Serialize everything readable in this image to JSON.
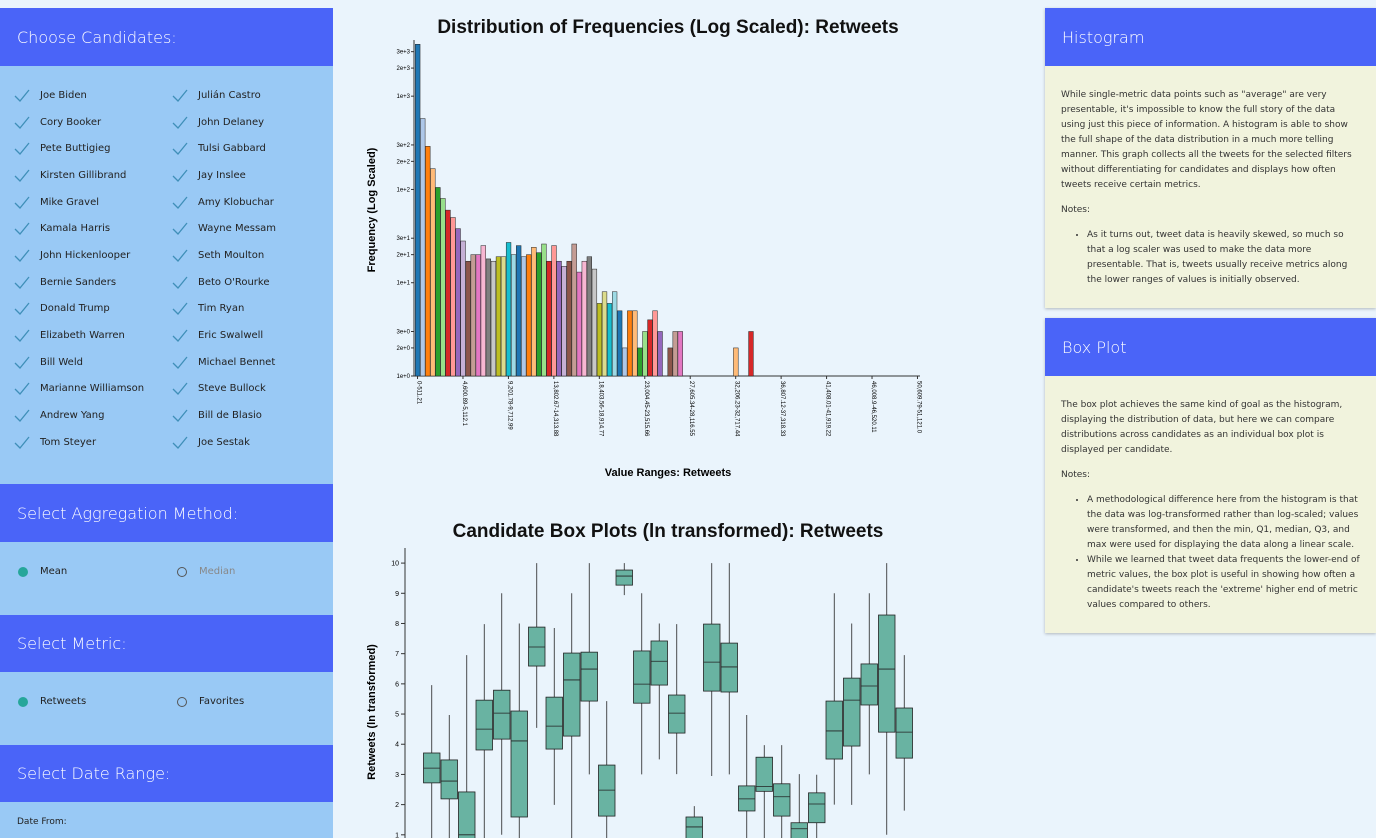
{
  "sidebar": {
    "candidates_title": "Choose Candidates:",
    "candidates": [
      "Joe Biden",
      "Cory Booker",
      "Pete Buttigieg",
      "Kirsten Gillibrand",
      "Mike Gravel",
      "Kamala Harris",
      "John Hickenlooper",
      "Bernie Sanders",
      "Donald Trump",
      "Elizabeth Warren",
      "Bill Weld",
      "Marianne Williamson",
      "Andrew Yang",
      "Tom Steyer",
      "Julián Castro",
      "John Delaney",
      "Tulsi Gabbard",
      "Jay Inslee",
      "Amy Klobuchar",
      "Wayne Messam",
      "Seth Moulton",
      "Beto O'Rourke",
      "Tim Ryan",
      "Eric Swalwell",
      "Michael Bennet",
      "Steve Bullock",
      "Bill de Blasio",
      "Joe Sestak"
    ],
    "aggregation_title": "Select Aggregation Method:",
    "aggregation_options": [
      "Mean",
      "Median"
    ],
    "aggregation_selected": 0,
    "metric_title": "Select Metric:",
    "metric_options": [
      "Retweets",
      "Favorites"
    ],
    "metric_selected": 0,
    "date_title": "Select Date Range:",
    "date_from_label": "Date From:"
  },
  "chart_data": [
    {
      "type": "histogram",
      "title": "Distribution of Frequencies (Log Scaled): Retweets",
      "ylabel": "Frequency (Log Scaled)",
      "xlabel": "Value Ranges: Retweets",
      "log_scale": true,
      "colors": [
        "#1f77b4",
        "#aec7e8",
        "#ff7f0e",
        "#ffbb78",
        "#2ca02c",
        "#98df8a",
        "#d62728",
        "#ff9896",
        "#9467bd",
        "#c5b0d5",
        "#8c564b",
        "#c49c94",
        "#e377c2",
        "#f7b6d2",
        "#7f7f7f",
        "#c7c7c7",
        "#bcbd22",
        "#dbdb8d",
        "#17becf",
        "#9edae5"
      ],
      "categories": [
        "0-511.21",
        null,
        null,
        null,
        null,
        null,
        null,
        null,
        null,
        "4,600.89-5,112.1",
        null,
        null,
        null,
        null,
        null,
        null,
        null,
        null,
        "9,201.78-9,712.99",
        null,
        null,
        null,
        null,
        null,
        null,
        null,
        null,
        "13,802.67-14,313.88",
        null,
        null,
        null,
        null,
        null,
        null,
        null,
        null,
        "18,403.56-18,914.77",
        null,
        null,
        null,
        null,
        null,
        null,
        null,
        null,
        "23,004.45-23,515.66",
        null,
        null,
        null,
        null,
        null,
        null,
        null,
        null,
        "27,605.34-28,116.55",
        null,
        null,
        null,
        null,
        null,
        null,
        null,
        null,
        "32,206.23-32,717.44",
        null,
        null,
        null,
        null,
        null,
        null,
        null,
        null,
        "36,807.12-37,318.33",
        null,
        null,
        null,
        null,
        null,
        null,
        null,
        null,
        "41,408.01-41,919.22",
        null,
        null,
        null,
        null,
        null,
        null,
        null,
        null,
        "46,008.9-46,520.11",
        null,
        null,
        null,
        null,
        null,
        null,
        null,
        null,
        "50,609.79-51,121.0"
      ],
      "values": [
        3600,
        575,
        290,
        167,
        105,
        80,
        60,
        50,
        38,
        28,
        17,
        20,
        20,
        25,
        18,
        17,
        19,
        19,
        27,
        20,
        25,
        19,
        20,
        24,
        21,
        26,
        17,
        25,
        17,
        15,
        17,
        26,
        13,
        17,
        19,
        14,
        6,
        8,
        6,
        8,
        5,
        2,
        5,
        5,
        2,
        3,
        4,
        5,
        3,
        1,
        2,
        3,
        3,
        0,
        0,
        0,
        0,
        0,
        0,
        0,
        0,
        0,
        0,
        2,
        0,
        0,
        3,
        0,
        0,
        0,
        0,
        0,
        0,
        0,
        0,
        0,
        0,
        0,
        0,
        0,
        0,
        0,
        0,
        0,
        0,
        0,
        0,
        0,
        0,
        0,
        0,
        0,
        0,
        0,
        0,
        0,
        0,
        0,
        0,
        0
      ],
      "ylim": [
        1,
        4000
      ],
      "yticks": [
        {
          "value": 1,
          "label": "1e+0"
        },
        {
          "value": 2,
          "label": "2e+0"
        },
        {
          "value": 3,
          "label": "3e+0"
        },
        {
          "value": 10,
          "label": "1e+1"
        },
        {
          "value": 20,
          "label": "2e+1"
        },
        {
          "value": 30,
          "label": "3e+1"
        },
        {
          "value": 100,
          "label": "1e+2"
        },
        {
          "value": 200,
          "label": "2e+2"
        },
        {
          "value": 300,
          "label": "3e+2"
        },
        {
          "value": 1000,
          "label": "1e+3"
        },
        {
          "value": 2000,
          "label": "2e+3"
        },
        {
          "value": 3000,
          "label": "3e+3"
        }
      ]
    },
    {
      "type": "boxplot",
      "title": "Candidate Box Plots (ln transformed): Retweets",
      "ylabel": "Retweets (ln transformed)",
      "color": "#69b3a2",
      "ylim": [
        0,
        10.5
      ],
      "yticks": [
        1,
        2,
        3,
        4,
        5,
        6,
        7,
        8,
        9,
        10
      ],
      "boxes": [
        {
          "min": 0.5,
          "q1": 2.72,
          "median": 3.21,
          "q3": 3.71,
          "max": 5.96
        },
        {
          "min": 0.3,
          "q1": 2.19,
          "median": 2.78,
          "q3": 3.48,
          "max": 4.97
        },
        {
          "min": 0,
          "q1": 0.4,
          "median": 1.0,
          "q3": 2.42,
          "max": 6.95
        },
        {
          "min": 0.8,
          "q1": 3.81,
          "median": 4.5,
          "q3": 5.46,
          "max": 7.98
        },
        {
          "min": 1.0,
          "q1": 4.17,
          "median": 5.03,
          "q3": 5.79,
          "max": 9.0
        },
        {
          "min": 0,
          "q1": 1.59,
          "median": 4.11,
          "q3": 5.1,
          "max": 8.0
        },
        {
          "min": 4.54,
          "q1": 6.59,
          "median": 7.22,
          "q3": 7.88,
          "max": 10
        },
        {
          "min": 1.99,
          "q1": 3.84,
          "median": 4.6,
          "q3": 5.56,
          "max": 7.85
        },
        {
          "min": 0.5,
          "q1": 4.27,
          "median": 6.13,
          "q3": 7.02,
          "max": 9.0
        },
        {
          "min": 3.0,
          "q1": 5.43,
          "median": 6.49,
          "q3": 7.05,
          "max": 10
        },
        {
          "min": 0.4,
          "q1": 1.62,
          "median": 2.48,
          "q3": 3.31,
          "max": 5.43
        },
        {
          "min": 8.94,
          "q1": 9.27,
          "median": 9.57,
          "q3": 9.77,
          "max": 10
        },
        {
          "min": 3.0,
          "q1": 5.36,
          "median": 5.99,
          "q3": 7.09,
          "max": 9.0
        },
        {
          "min": 3.5,
          "q1": 5.96,
          "median": 6.75,
          "q3": 7.42,
          "max": 8.0
        },
        {
          "min": 3.01,
          "q1": 4.37,
          "median": 5.03,
          "q3": 5.63,
          "max": 7.98
        },
        {
          "min": 0,
          "q1": 0.6,
          "median": 1.26,
          "q3": 1.59,
          "max": 1.95
        },
        {
          "min": 2.95,
          "q1": 5.76,
          "median": 6.72,
          "q3": 7.98,
          "max": 10
        },
        {
          "min": 3.0,
          "q1": 5.73,
          "median": 6.56,
          "q3": 7.35,
          "max": 10
        },
        {
          "min": 0.5,
          "q1": 1.79,
          "median": 2.19,
          "q3": 2.62,
          "max": 4.97
        },
        {
          "min": 0.5,
          "q1": 2.44,
          "median": 2.6,
          "q3": 3.57,
          "max": 3.97
        },
        {
          "min": 0.3,
          "q1": 1.62,
          "median": 2.26,
          "q3": 2.69,
          "max": 3.97
        },
        {
          "min": 0,
          "q1": 0.5,
          "median": 1.2,
          "q3": 1.4,
          "max": 3.01
        },
        {
          "min": 0.5,
          "q1": 1.4,
          "median": 2.02,
          "q3": 2.39,
          "max": 2.99
        },
        {
          "min": 2.0,
          "q1": 3.51,
          "median": 4.44,
          "q3": 5.43,
          "max": 9.0
        },
        {
          "min": 1.99,
          "q1": 3.94,
          "median": 5.46,
          "q3": 6.19,
          "max": 8.0
        },
        {
          "min": 3.0,
          "q1": 5.3,
          "median": 5.93,
          "q3": 6.66,
          "max": 9.0
        },
        {
          "min": 1.0,
          "q1": 4.4,
          "median": 6.49,
          "q3": 8.28,
          "max": 10
        },
        {
          "min": 1.8,
          "q1": 3.54,
          "median": 4.4,
          "q3": 5.2,
          "max": 6.95
        }
      ]
    }
  ],
  "info_panels": [
    {
      "title": "Histogram",
      "paragraphs": [
        "While single-metric data points such as \"average\" are very presentable, it's impossible to know the full story of the data using just this piece of information. A histogram is able to show the full shape of the data distribution in a much more telling manner. This graph collects all the tweets for the selected filters without differentiating for candidates and displays how often tweets receive certain metrics."
      ],
      "notes_label": "Notes:",
      "notes": [
        "As it turns out, tweet data is heavily skewed, so much so that a log scaler was used to make the data more presentable. That is, tweets usually receive metrics along the lower ranges of values is initially observed."
      ]
    },
    {
      "title": "Box Plot",
      "paragraphs": [
        "The box plot achieves the same kind of goal as the histogram, displaying the distribution of data, but here we can compare distributions across candidates as an individual box plot is displayed per candidate."
      ],
      "notes_label": "Notes:",
      "notes": [
        "A methodological difference here from the histogram is that the data was log-transformed rather than log-scaled; values were transformed, and then the min, Q1, median, Q3, and max were used for displaying the data along a linear scale.",
        "While we learned that tweet data frequents the lower-end of metric values, the box plot is useful in showing how often a candidate's tweets reach the 'extreme' higher end of metric values compared to others."
      ]
    }
  ]
}
